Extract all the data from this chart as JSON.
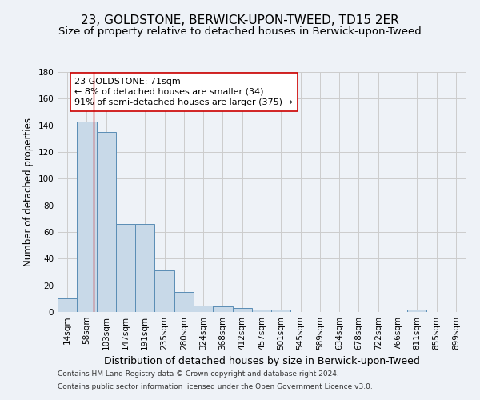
{
  "title": "23, GOLDSTONE, BERWICK-UPON-TWEED, TD15 2ER",
  "subtitle": "Size of property relative to detached houses in Berwick-upon-Tweed",
  "xlabel": "Distribution of detached houses by size in Berwick-upon-Tweed",
  "ylabel": "Number of detached properties",
  "footnote1": "Contains HM Land Registry data © Crown copyright and database right 2024.",
  "footnote2": "Contains public sector information licensed under the Open Government Licence v3.0.",
  "bin_labels": [
    "14sqm",
    "58sqm",
    "103sqm",
    "147sqm",
    "191sqm",
    "235sqm",
    "280sqm",
    "324sqm",
    "368sqm",
    "412sqm",
    "457sqm",
    "501sqm",
    "545sqm",
    "589sqm",
    "634sqm",
    "678sqm",
    "722sqm",
    "766sqm",
    "811sqm",
    "855sqm",
    "899sqm"
  ],
  "bar_values": [
    10,
    143,
    135,
    66,
    66,
    31,
    15,
    5,
    4,
    3,
    2,
    2,
    0,
    0,
    0,
    0,
    0,
    0,
    2,
    0,
    0
  ],
  "bar_color": "#c8d9e8",
  "bar_edge_color": "#5a8db5",
  "grid_color": "#cccccc",
  "bg_color": "#eef2f7",
  "annotation_text": "23 GOLDSTONE: 71sqm\n← 8% of detached houses are smaller (34)\n91% of semi-detached houses are larger (375) →",
  "annotation_box_color": "#ffffff",
  "annotation_border_color": "#cc0000",
  "red_line_x": 1.35,
  "ylim": [
    0,
    180
  ],
  "yticks": [
    0,
    20,
    40,
    60,
    80,
    100,
    120,
    140,
    160,
    180
  ],
  "title_fontsize": 11,
  "subtitle_fontsize": 9.5,
  "axis_label_fontsize": 8.5,
  "tick_fontsize": 7.5,
  "annotation_fontsize": 8,
  "footnote_fontsize": 6.5
}
